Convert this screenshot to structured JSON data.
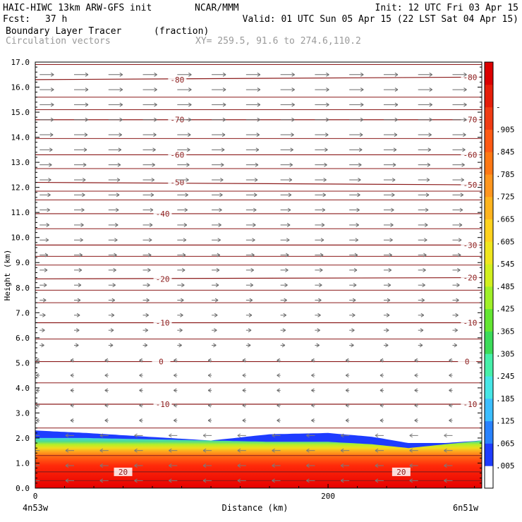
{
  "header": {
    "model": "HAIC-HIWC 13km ARW-GFS init",
    "org": "NCAR/MMM",
    "init": "Init: 12 UTC Fri 03 Apr 15",
    "fcst_label": "Fcst:",
    "fcst_value": "37 h",
    "valid": "Valid: 01 UTC Sun 05 Apr 15 (22 LST Sat 04 Apr 15)",
    "field": "Boundary Layer Tracer",
    "field_unit": "(fraction)",
    "overlay": "Circulation vectors",
    "xy": "XY= 259.5, 91.6 to 274.6,110.2"
  },
  "chart_data": {
    "type": "heatmap",
    "xlabel": "Distance (km)",
    "ylabel": "Height (km)",
    "xlim": [
      0,
      305
    ],
    "ylim": [
      0,
      17
    ],
    "x_ticks": [
      {
        "value": 0,
        "label": "0"
      },
      {
        "value": 200,
        "label": "200"
      }
    ],
    "x_end_labels": {
      "left": "4n53w",
      "right": "6n51w"
    },
    "y_ticks": [
      "0.0",
      "1.0",
      "2.0",
      "3.0",
      "4.0",
      "5.0",
      "6.0",
      "7.0",
      "8.0",
      "9.0",
      "10.0",
      "11.0",
      "12.0",
      "13.0",
      "14.0",
      "15.0",
      "16.0",
      "17.0"
    ],
    "colorbar": {
      "labels": [
        ".005",
        ".065",
        ".125",
        ".185",
        ".245",
        ".305",
        ".365",
        ".425",
        ".485",
        ".545",
        ".605",
        ".665",
        ".725",
        ".785",
        ".845",
        ".905",
        "-"
      ],
      "colors": [
        "#ffffff",
        "#1e3cff",
        "#2882ff",
        "#3cbeff",
        "#46e6e6",
        "#46f0aa",
        "#3cdc5a",
        "#64e632",
        "#a0f028",
        "#d2f01e",
        "#f0e61e",
        "#ffd21e",
        "#ffb41e",
        "#ff961e",
        "#ff7814",
        "#ff5a14",
        "#f03c14",
        "#e61e0a",
        "#dc0000"
      ]
    },
    "tracer_profile": {
      "x": [
        0,
        35,
        120,
        160,
        200,
        230,
        255,
        280,
        305
      ],
      "bl_top_km": [
        2.0,
        2.0,
        1.9,
        1.85,
        1.85,
        1.75,
        1.6,
        1.75,
        1.9
      ],
      "blue_cap_top_km": [
        2.3,
        2.2,
        1.9,
        2.15,
        2.2,
        2.05,
        1.8,
        1.8,
        1.9
      ]
    },
    "contours": [
      {
        "label": "-10",
        "y_km": [
          3.35,
          3.35
        ],
        "label_at": [
          [
            87,
            3.35
          ],
          [
            297,
            3.35
          ]
        ]
      },
      {
        "label": "0",
        "y_km": [
          5.05,
          5.05
        ],
        "label_at": [
          [
            86,
            5.05
          ],
          [
            295,
            5.05
          ]
        ]
      },
      {
        "label": "-10",
        "y_km": [
          6.6,
          6.6
        ],
        "label_at": [
          [
            87,
            6.6
          ],
          [
            297,
            6.6
          ]
        ]
      },
      {
        "label": "-20",
        "y_km": [
          8.35,
          8.4
        ],
        "label_at": [
          [
            87,
            8.35
          ],
          [
            297,
            8.4
          ]
        ]
      },
      {
        "label": "-30",
        "y_km": [
          9.7,
          9.7
        ],
        "label_at": [
          [
            297,
            9.7
          ]
        ]
      },
      {
        "label": "-40",
        "y_km": [
          10.95,
          10.95
        ],
        "label_at": [
          [
            87,
            10.95
          ]
        ]
      },
      {
        "label": "-50",
        "y_km": [
          12.2,
          12.1
        ],
        "label_at": [
          [
            97,
            12.2
          ],
          [
            297,
            12.1
          ]
        ]
      },
      {
        "label": "-60",
        "y_km": [
          13.3,
          13.3
        ],
        "label_at": [
          [
            97,
            13.3
          ],
          [
            297,
            13.3
          ]
        ]
      },
      {
        "label": "-70",
        "y_km": [
          14.7,
          14.7
        ],
        "label_at": [
          [
            97,
            14.7
          ],
          [
            297,
            14.7
          ]
        ]
      },
      {
        "label": "-80",
        "y_km": [
          16.3,
          16.4
        ],
        "label_at": [
          [
            97,
            16.3
          ],
          [
            297,
            16.4
          ]
        ]
      },
      {
        "label": "20",
        "y_km": [
          0.65,
          0.65
        ],
        "label_at": [
          [
            60,
            0.65
          ],
          [
            250,
            0.65
          ]
        ]
      }
    ],
    "extra_isotherms_km": [
      0.3,
      1.3,
      2.4,
      4.2,
      5.95,
      7.4,
      7.9,
      8.9,
      9.25,
      10.35,
      11.5,
      11.85,
      12.75,
      13.95,
      15.1,
      15.6,
      16.9
    ]
  }
}
